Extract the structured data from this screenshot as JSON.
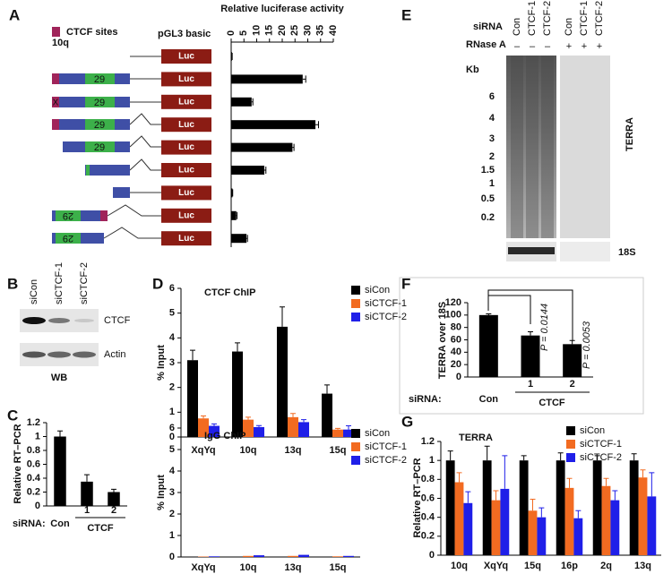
{
  "panel_labels": [
    "A",
    "B",
    "C",
    "D",
    "E",
    "F",
    "G"
  ],
  "constructs": {
    "legend": "CTCF sites",
    "vector": "pGL3 basic",
    "locus": "10q",
    "reporter": "Luc",
    "repeat": "29",
    "mutation": "X"
  },
  "blot": {
    "lanes": [
      "siCon",
      "siCTCF-1",
      "siCTCF-2"
    ],
    "bands": [
      "CTCF",
      "Actin"
    ],
    "method": "WB"
  },
  "gel": {
    "row1_label": "siRNA",
    "lanes": [
      "Con",
      "CTCF-1",
      "CTCF-2",
      "Con",
      "CTCF-1",
      "CTCF-2"
    ],
    "row2_label": "RNase A",
    "rnase": [
      "–",
      "–",
      "–",
      "+",
      "+",
      "+"
    ],
    "size_unit": "Kb",
    "markers": [
      "6",
      "4",
      "3",
      "2",
      "1.5",
      "1",
      "0.5",
      "0.2"
    ],
    "signal": "TERRA",
    "control": "18S"
  },
  "chart_data": [
    {
      "type": "bar",
      "orientation": "horizontal",
      "xlabel": "Relative luciferase activity",
      "categories": [
        null,
        null,
        null,
        null,
        null,
        null,
        null,
        null,
        null
      ],
      "values": [
        0.3,
        28,
        8,
        33,
        24,
        13,
        0.5,
        2,
        6
      ],
      "errors": [
        0.1,
        1.2,
        0.5,
        1.2,
        0.6,
        0.6,
        0.1,
        0.3,
        0.4
      ],
      "color": "#000000",
      "xlim": [
        0,
        40
      ],
      "xticks": [
        0,
        5,
        10,
        15,
        20,
        25,
        30,
        35,
        40
      ]
    },
    {
      "type": "bar",
      "ylabel": "Relative RT–PCR",
      "row_label": "siRNA:",
      "group_label": "CTCF",
      "categories": [
        "Con",
        1,
        2
      ],
      "values": [
        1.0,
        0.35,
        0.2
      ],
      "errors": [
        0.08,
        0.1,
        0.04
      ],
      "color": "#000000",
      "ylim": [
        0,
        1.2
      ],
      "yticks": [
        0,
        0.2,
        0.4,
        0.6,
        0.8,
        1,
        1.2
      ]
    },
    {
      "type": "bar",
      "title": "CTCF ChIP",
      "ylabel": "% Input",
      "categories": [
        "XqYq",
        "10q",
        "13q",
        "15q"
      ],
      "series": [
        {
          "name": "siCon",
          "color": "#000000",
          "values": [
            3.1,
            3.45,
            4.45,
            1.75
          ],
          "errors": [
            0.4,
            0.35,
            0.8,
            0.35
          ]
        },
        {
          "name": "siCTCF-1",
          "color": "#f26b21",
          "values": [
            0.75,
            0.7,
            0.8,
            0.3
          ],
          "errors": [
            0.1,
            0.1,
            0.15,
            0.05
          ]
        },
        {
          "name": "siCTCF-2",
          "color": "#1f1fe8",
          "values": [
            0.45,
            0.4,
            0.6,
            0.3
          ],
          "errors": [
            0.08,
            0.06,
            0.1,
            0.15
          ]
        }
      ],
      "ylim": [
        0,
        6
      ],
      "yticks": [
        0,
        1,
        2,
        3,
        4,
        5,
        6
      ]
    },
    {
      "type": "bar",
      "title": "IgG ChIP",
      "ylabel": "% Input",
      "categories": [
        "XqYq",
        "10q",
        "13q",
        "15q"
      ],
      "series": [
        {
          "name": "siCon",
          "color": "#000000",
          "values": [
            0.02,
            0.02,
            0.02,
            0.02
          ]
        },
        {
          "name": "siCTCF-1",
          "color": "#f26b21",
          "values": [
            0.02,
            0.05,
            0.05,
            0.03
          ]
        },
        {
          "name": "siCTCF-2",
          "color": "#1f1fe8",
          "values": [
            0.03,
            0.08,
            0.1,
            0.05
          ]
        }
      ],
      "ylim": [
        0,
        6
      ],
      "yticks": [
        0,
        1,
        2,
        3,
        4,
        5,
        6
      ]
    },
    {
      "type": "bar",
      "ylabel": "TERRA over 18S",
      "row_label": "siRNA:",
      "group_label": "CTCF",
      "categories": [
        "Con",
        1,
        2
      ],
      "values": [
        100,
        67,
        53
      ],
      "errors": [
        2,
        6,
        6
      ],
      "color": "#000000",
      "annotations": [
        "P = 0.0144",
        "P = 0.0053"
      ],
      "ylim": [
        0,
        120
      ],
      "yticks": [
        0,
        20,
        40,
        60,
        80,
        100,
        120
      ]
    },
    {
      "type": "bar",
      "title": "TERRA",
      "ylabel": "Relative RT–PCR",
      "categories": [
        "10q",
        "XqYq",
        "15q",
        "16p",
        "2q",
        "13q"
      ],
      "series": [
        {
          "name": "siCon",
          "color": "#000000",
          "values": [
            1.0,
            1.0,
            1.0,
            1.0,
            1.0,
            1.0
          ],
          "errors": [
            0.1,
            0.15,
            0.05,
            0.08,
            0.05,
            0.07
          ]
        },
        {
          "name": "siCTCF-1",
          "color": "#f26b21",
          "values": [
            0.77,
            0.58,
            0.47,
            0.71,
            0.73,
            0.82
          ],
          "errors": [
            0.1,
            0.1,
            0.12,
            0.1,
            0.08,
            0.08
          ]
        },
        {
          "name": "siCTCF-2",
          "color": "#1f1fe8",
          "values": [
            0.55,
            0.7,
            0.4,
            0.39,
            0.58,
            0.62
          ],
          "errors": [
            0.12,
            0.35,
            0.1,
            0.08,
            0.1,
            0.25
          ]
        }
      ],
      "ylim": [
        0,
        1.2
      ],
      "yticks": [
        0,
        0.2,
        0.4,
        0.6,
        0.8,
        1,
        1.2
      ]
    }
  ]
}
